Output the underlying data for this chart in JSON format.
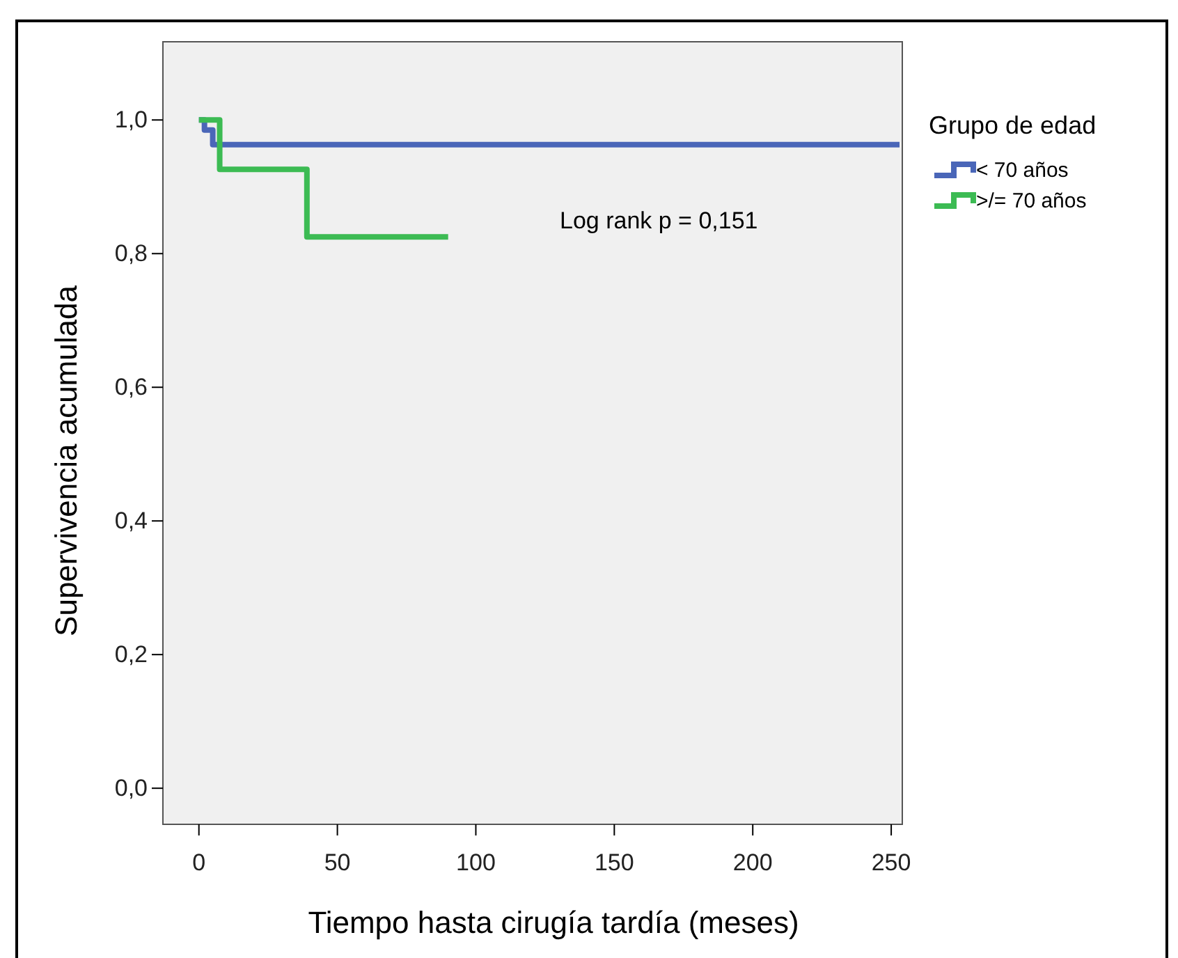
{
  "chart_data": {
    "type": "step",
    "xlabel": "Tiempo hasta cirugía tardía (meses)",
    "ylabel": "Supervivencia acumulada",
    "legend_title": "Grupo de edad",
    "series": [
      {
        "name": "< 70 años",
        "color": "#4a66b8",
        "x": [
          0,
          2,
          5,
          253
        ],
        "values": [
          1.0,
          0.985,
          0.963,
          0.963
        ]
      },
      {
        "name": ">/= 70 años",
        "color": "#3cbb53",
        "x": [
          0,
          7.5,
          39,
          90
        ],
        "values": [
          1.0,
          0.926,
          0.825,
          0.825
        ]
      }
    ],
    "annotations": [
      "Log rank p = 0,151"
    ],
    "xlim": [
      -13,
      254
    ],
    "ylim": [
      -0.054,
      1.117
    ],
    "xticks": [
      0,
      50,
      100,
      150,
      200,
      250
    ],
    "yticks": [
      {
        "value": 0,
        "label": "0,0"
      },
      {
        "value": 0.2,
        "label": "0,2"
      },
      {
        "value": 0.4,
        "label": "0,4"
      },
      {
        "value": 0.6,
        "label": "0,6"
      },
      {
        "value": 0.8,
        "label": "0,8"
      },
      {
        "value": 1,
        "label": "1,0"
      }
    ],
    "legend": "right",
    "grid": false,
    "line_style": "solid",
    "marker": "none"
  }
}
